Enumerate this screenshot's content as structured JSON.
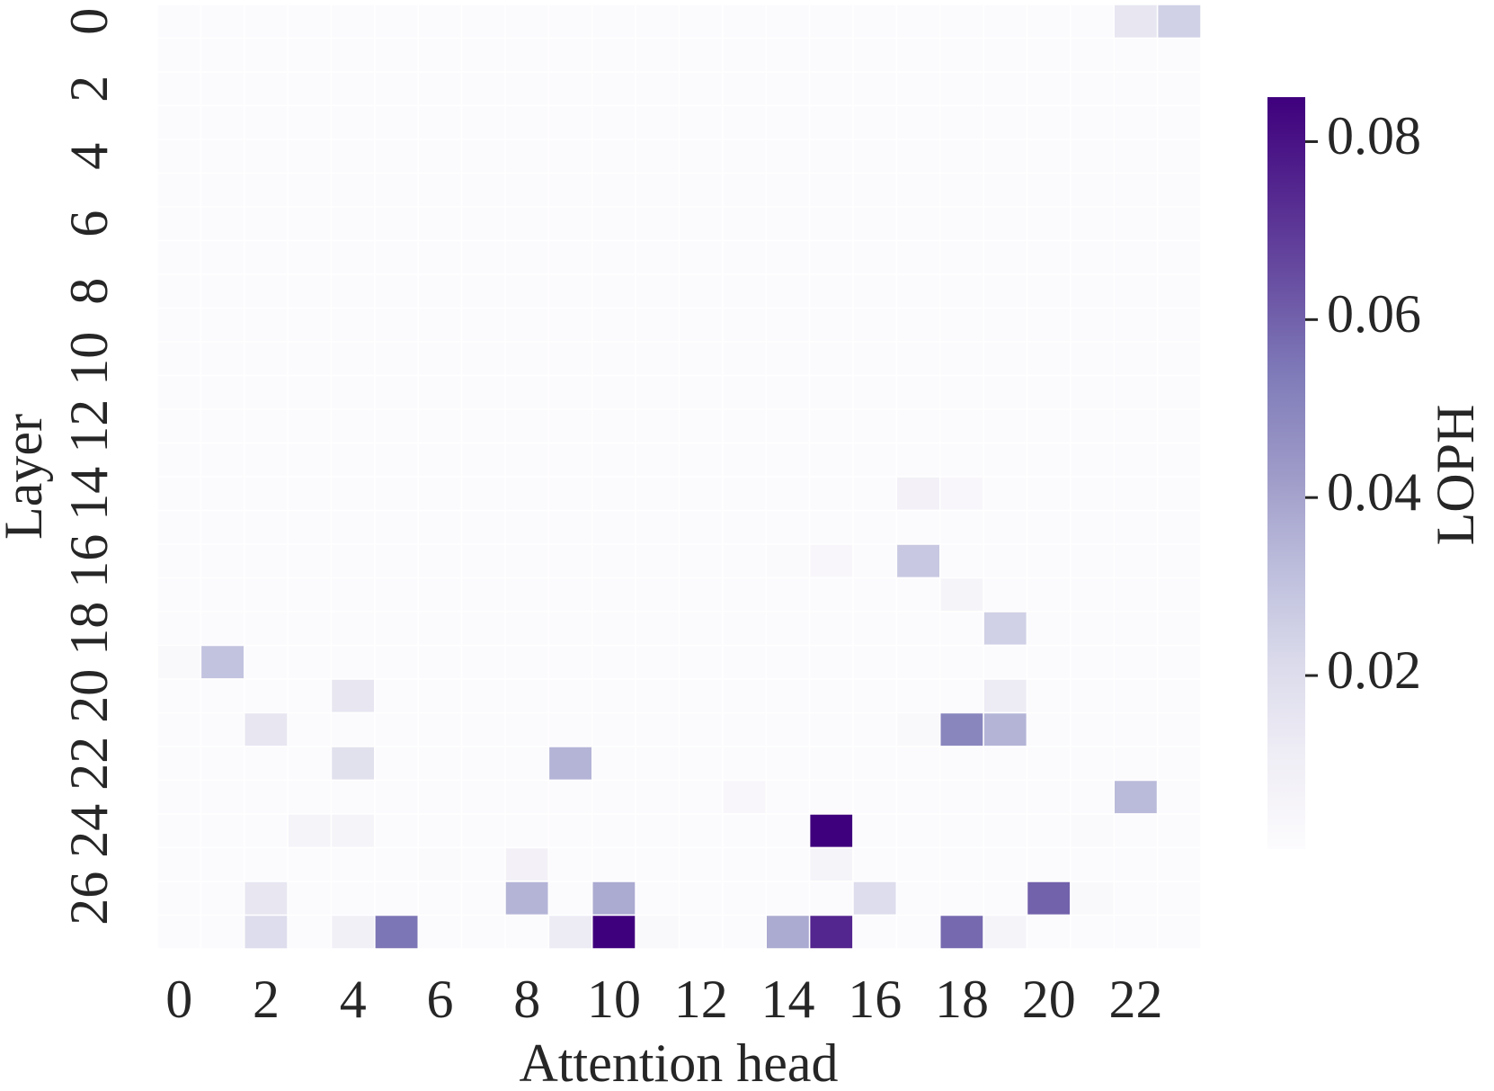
{
  "chart_data": {
    "type": "heatmap",
    "xlabel": "Attention head",
    "ylabel": "Layer",
    "colorbar_label": "LOPH",
    "x": [
      0,
      null,
      2,
      null,
      4,
      null,
      6,
      null,
      8,
      null,
      10,
      null,
      12,
      null,
      14,
      null,
      16,
      null,
      18,
      null,
      20,
      null,
      22,
      null
    ],
    "y": [
      0,
      null,
      2,
      null,
      4,
      null,
      6,
      null,
      8,
      null,
      10,
      null,
      12,
      null,
      14,
      null,
      16,
      null,
      18,
      null,
      20,
      null,
      22,
      null,
      24,
      null,
      26,
      null
    ],
    "clim": [
      0.0005,
      0.085
    ],
    "cticks": [
      0.02,
      0.04,
      0.06,
      0.08
    ],
    "colormap": [
      "#fcfbfd",
      "#efedf5",
      "#dadaeb",
      "#bcbddc",
      "#9e9ac8",
      "#807dba",
      "#6a51a3",
      "#54278f",
      "#3f007d"
    ],
    "values": [
      [
        0.001,
        0.001,
        0.001,
        0.001,
        0.001,
        0.001,
        0.001,
        0.001,
        0.001,
        0.001,
        0.001,
        0.001,
        0.001,
        0.001,
        0.001,
        0.001,
        0.001,
        0.001,
        0.001,
        0.001,
        0.001,
        0.001,
        0.015,
        0.025
      ],
      [
        0.001,
        0.001,
        0.001,
        0.001,
        0.001,
        0.001,
        0.001,
        0.001,
        0.001,
        0.001,
        0.001,
        0.001,
        0.001,
        0.001,
        0.001,
        0.001,
        0.001,
        0.001,
        0.001,
        0.001,
        0.001,
        0.001,
        0.001,
        0.001
      ],
      [
        0.001,
        0.001,
        0.001,
        0.001,
        0.001,
        0.001,
        0.001,
        0.001,
        0.001,
        0.001,
        0.001,
        0.001,
        0.001,
        0.001,
        0.001,
        0.001,
        0.001,
        0.001,
        0.001,
        0.001,
        0.001,
        0.001,
        0.001,
        0.001
      ],
      [
        0.001,
        0.001,
        0.001,
        0.001,
        0.001,
        0.001,
        0.001,
        0.001,
        0.001,
        0.001,
        0.001,
        0.001,
        0.001,
        0.001,
        0.001,
        0.001,
        0.001,
        0.001,
        0.001,
        0.001,
        0.001,
        0.001,
        0.001,
        0.001
      ],
      [
        0.001,
        0.001,
        0.001,
        0.001,
        0.001,
        0.001,
        0.001,
        0.001,
        0.001,
        0.001,
        0.001,
        0.001,
        0.001,
        0.001,
        0.001,
        0.001,
        0.001,
        0.001,
        0.001,
        0.001,
        0.001,
        0.001,
        0.001,
        0.001
      ],
      [
        0.001,
        0.001,
        0.001,
        0.001,
        0.001,
        0.001,
        0.001,
        0.001,
        0.001,
        0.001,
        0.001,
        0.001,
        0.001,
        0.001,
        0.001,
        0.001,
        0.001,
        0.001,
        0.001,
        0.001,
        0.001,
        0.001,
        0.001,
        0.001
      ],
      [
        0.001,
        0.001,
        0.001,
        0.001,
        0.001,
        0.001,
        0.001,
        0.001,
        0.001,
        0.001,
        0.001,
        0.001,
        0.001,
        0.001,
        0.001,
        0.001,
        0.001,
        0.001,
        0.001,
        0.001,
        0.001,
        0.001,
        0.001,
        0.001
      ],
      [
        0.001,
        0.001,
        0.001,
        0.001,
        0.001,
        0.001,
        0.001,
        0.001,
        0.001,
        0.001,
        0.001,
        0.001,
        0.001,
        0.001,
        0.001,
        0.001,
        0.001,
        0.001,
        0.001,
        0.001,
        0.001,
        0.001,
        0.001,
        0.001
      ],
      [
        0.001,
        0.001,
        0.001,
        0.001,
        0.001,
        0.001,
        0.001,
        0.001,
        0.001,
        0.001,
        0.001,
        0.001,
        0.001,
        0.001,
        0.001,
        0.001,
        0.001,
        0.001,
        0.001,
        0.001,
        0.001,
        0.001,
        0.001,
        0.001
      ],
      [
        0.001,
        0.001,
        0.001,
        0.001,
        0.001,
        0.001,
        0.001,
        0.001,
        0.001,
        0.001,
        0.001,
        0.001,
        0.001,
        0.001,
        0.001,
        0.001,
        0.001,
        0.001,
        0.001,
        0.001,
        0.001,
        0.001,
        0.001,
        0.001
      ],
      [
        0.001,
        0.001,
        0.001,
        0.001,
        0.001,
        0.001,
        0.001,
        0.001,
        0.001,
        0.001,
        0.001,
        0.001,
        0.001,
        0.001,
        0.001,
        0.001,
        0.001,
        0.001,
        0.001,
        0.001,
        0.001,
        0.001,
        0.001,
        0.001
      ],
      [
        0.001,
        0.001,
        0.001,
        0.001,
        0.001,
        0.001,
        0.001,
        0.001,
        0.001,
        0.001,
        0.001,
        0.001,
        0.001,
        0.001,
        0.001,
        0.001,
        0.001,
        0.001,
        0.001,
        0.001,
        0.001,
        0.001,
        0.001,
        0.001
      ],
      [
        0.001,
        0.001,
        0.001,
        0.001,
        0.001,
        0.001,
        0.001,
        0.001,
        0.001,
        0.001,
        0.001,
        0.001,
        0.001,
        0.001,
        0.001,
        0.001,
        0.001,
        0.001,
        0.001,
        0.001,
        0.001,
        0.001,
        0.001,
        0.001
      ],
      [
        0.001,
        0.001,
        0.001,
        0.001,
        0.001,
        0.001,
        0.001,
        0.001,
        0.001,
        0.001,
        0.001,
        0.001,
        0.001,
        0.001,
        0.001,
        0.001,
        0.001,
        0.001,
        0.001,
        0.001,
        0.001,
        0.001,
        0.001,
        0.001
      ],
      [
        0.001,
        0.001,
        0.001,
        0.001,
        0.001,
        0.001,
        0.001,
        0.001,
        0.001,
        0.001,
        0.001,
        0.001,
        0.001,
        0.001,
        0.001,
        0.001,
        0.001,
        0.008,
        0.004,
        0.001,
        0.001,
        0.001,
        0.001,
        0.001
      ],
      [
        0.001,
        0.001,
        0.001,
        0.001,
        0.001,
        0.001,
        0.001,
        0.001,
        0.001,
        0.001,
        0.001,
        0.001,
        0.001,
        0.001,
        0.001,
        0.001,
        0.001,
        0.001,
        0.001,
        0.001,
        0.001,
        0.001,
        0.001,
        0.001
      ],
      [
        0.001,
        0.001,
        0.001,
        0.001,
        0.001,
        0.001,
        0.001,
        0.001,
        0.001,
        0.001,
        0.001,
        0.001,
        0.001,
        0.001,
        0.002,
        0.004,
        0.001,
        0.028,
        0.001,
        0.001,
        0.001,
        0.001,
        0.001,
        0.001
      ],
      [
        0.001,
        0.001,
        0.001,
        0.001,
        0.001,
        0.001,
        0.001,
        0.001,
        0.001,
        0.001,
        0.001,
        0.001,
        0.001,
        0.001,
        0.001,
        0.001,
        0.001,
        0.001,
        0.006,
        0.001,
        0.001,
        0.001,
        0.001,
        0.001
      ],
      [
        0.001,
        0.001,
        0.001,
        0.001,
        0.001,
        0.001,
        0.001,
        0.001,
        0.001,
        0.001,
        0.001,
        0.001,
        0.001,
        0.001,
        0.001,
        0.001,
        0.001,
        0.001,
        0.001,
        0.025,
        0.001,
        0.001,
        0.001,
        0.001
      ],
      [
        0.003,
        0.03,
        0.001,
        0.001,
        0.001,
        0.001,
        0.001,
        0.001,
        0.001,
        0.001,
        0.001,
        0.001,
        0.001,
        0.001,
        0.001,
        0.001,
        0.001,
        0.001,
        0.001,
        0.001,
        0.001,
        0.001,
        0.001,
        0.001
      ],
      [
        0.001,
        0.001,
        0.001,
        0.001,
        0.015,
        0.001,
        0.001,
        0.001,
        0.001,
        0.001,
        0.001,
        0.001,
        0.001,
        0.001,
        0.001,
        0.001,
        0.001,
        0.001,
        0.001,
        0.012,
        0.001,
        0.001,
        0.001,
        0.001
      ],
      [
        0.001,
        0.001,
        0.015,
        0.001,
        0.001,
        0.001,
        0.001,
        0.001,
        0.001,
        0.001,
        0.001,
        0.001,
        0.001,
        0.001,
        0.001,
        0.001,
        0.001,
        0.003,
        0.05,
        0.035,
        0.001,
        0.001,
        0.001,
        0.001
      ],
      [
        0.001,
        0.001,
        0.001,
        0.001,
        0.018,
        0.001,
        0.001,
        0.001,
        0.001,
        0.035,
        0.001,
        0.001,
        0.001,
        0.001,
        0.001,
        0.001,
        0.001,
        0.001,
        0.001,
        0.001,
        0.001,
        0.001,
        0.001,
        0.001
      ],
      [
        0.001,
        0.001,
        0.001,
        0.001,
        0.001,
        0.001,
        0.001,
        0.001,
        0.001,
        0.001,
        0.001,
        0.001,
        0.001,
        0.004,
        0.001,
        0.001,
        0.001,
        0.001,
        0.001,
        0.001,
        0.001,
        0.001,
        0.033,
        0.001
      ],
      [
        0.001,
        0.001,
        0.001,
        0.006,
        0.006,
        0.001,
        0.001,
        0.001,
        0.001,
        0.001,
        0.001,
        0.001,
        0.001,
        0.001,
        0.001,
        0.085,
        0.001,
        0.001,
        0.001,
        0.001,
        0.001,
        0.002,
        0.001,
        0.001
      ],
      [
        0.001,
        0.001,
        0.001,
        0.001,
        0.001,
        0.001,
        0.002,
        0.001,
        0.008,
        0.001,
        0.001,
        0.001,
        0.001,
        0.001,
        0.001,
        0.006,
        0.001,
        0.001,
        0.001,
        0.001,
        0.001,
        0.001,
        0.001,
        0.001
      ],
      [
        0.001,
        0.001,
        0.015,
        0.001,
        0.001,
        0.001,
        0.001,
        0.001,
        0.035,
        0.001,
        0.038,
        0.001,
        0.001,
        0.001,
        0.001,
        0.001,
        0.02,
        0.001,
        0.001,
        0.001,
        0.06,
        0.003,
        0.001,
        0.001
      ],
      [
        0.001,
        0.001,
        0.02,
        0.001,
        0.009,
        0.055,
        0.001,
        0.001,
        0.001,
        0.012,
        0.085,
        0.003,
        0.001,
        0.001,
        0.038,
        0.075,
        0.001,
        0.001,
        0.058,
        0.006,
        0.001,
        0.001,
        0.001,
        0.001
      ]
    ]
  }
}
